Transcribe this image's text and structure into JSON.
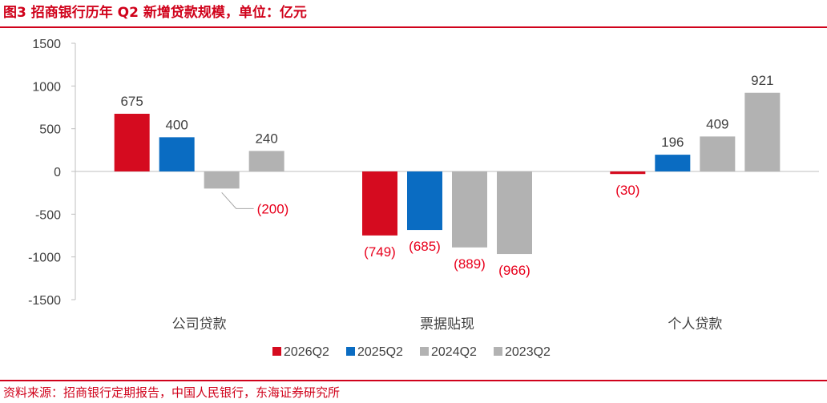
{
  "header": {
    "title": "图3 招商银行历年 Q2 新增贷款规模，单位：亿元"
  },
  "footer": {
    "source": "资料来源：招商银行定期报告，中国人民银行，东海证券研究所"
  },
  "colors": {
    "accent": "#d0021b",
    "negative_label": "#e8001c"
  },
  "chart_data": {
    "type": "bar",
    "categories": [
      "公司贷款",
      "票据贴现",
      "个人贷款"
    ],
    "series": [
      {
        "name": "2026Q2",
        "color": "#d50b1f",
        "values": [
          675,
          -749,
          -30
        ]
      },
      {
        "name": "2025Q2",
        "color": "#0a6cc2",
        "values": [
          400,
          -685,
          196
        ]
      },
      {
        "name": "2024Q2",
        "color": "#b2b2b2",
        "values": [
          -200,
          -889,
          409
        ]
      },
      {
        "name": "2023Q2",
        "color": "#b2b2b2",
        "values": [
          240,
          -966,
          921
        ]
      }
    ],
    "data_labels": [
      [
        "675",
        "(749)",
        "(30)"
      ],
      [
        "400",
        "(685)",
        "196"
      ],
      [
        "(200)",
        "(889)",
        "409"
      ],
      [
        "240",
        "(966)",
        "921"
      ]
    ],
    "yticks": [
      1500,
      1000,
      500,
      0,
      -500,
      -1000,
      -1500
    ],
    "ylim": [
      -1500,
      1500
    ],
    "grid": false,
    "legend_position": "bottom"
  }
}
